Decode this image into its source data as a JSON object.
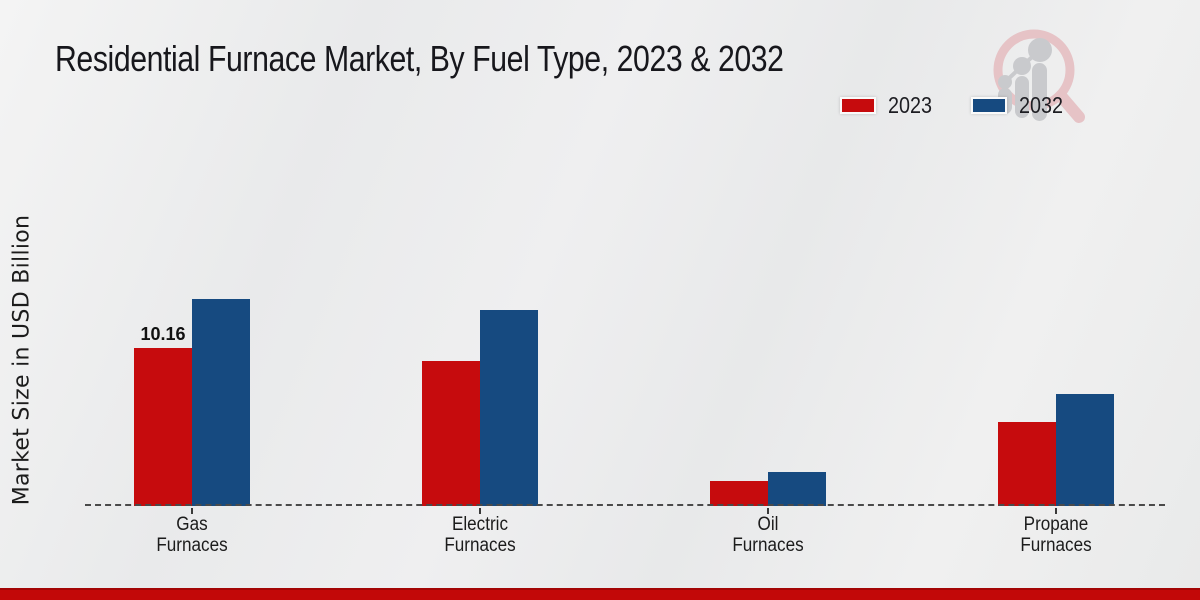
{
  "title": "Residential Furnace Market, By Fuel Type, 2023 & 2032",
  "y_axis_label": "Market Size in USD Billion",
  "legend": {
    "items": [
      {
        "label": "2023",
        "color": "#c60b0d"
      },
      {
        "label": "2032",
        "color": "#164a80"
      }
    ]
  },
  "footer": {
    "color": "#c20808"
  },
  "watermark": {
    "name": "magnifier-growth-chart-logo",
    "ring_color": "#e6c3c6",
    "glyph_color": "#c9cacd"
  },
  "chart_data": {
    "type": "bar",
    "title": "Residential Furnace Market, By Fuel Type, 2023 & 2032",
    "ylabel": "Market Size in USD Billion",
    "categories": [
      "Gas Furnaces",
      "Electric Furnaces",
      "Oil Furnaces",
      "Propane Furnaces"
    ],
    "series": [
      {
        "name": "2023",
        "color": "#c60b0d",
        "values": [
          10.16,
          9.3,
          1.6,
          5.4
        ]
      },
      {
        "name": "2032",
        "color": "#164a80",
        "values": [
          13.3,
          12.55,
          2.2,
          7.2
        ]
      }
    ],
    "data_labels": [
      {
        "series_index": 0,
        "category_index": 0,
        "text": "10.16"
      }
    ],
    "ylim": [
      0,
      14.5
    ],
    "grid": false,
    "baseline_style": "dashed",
    "legend_position": "top-right"
  }
}
